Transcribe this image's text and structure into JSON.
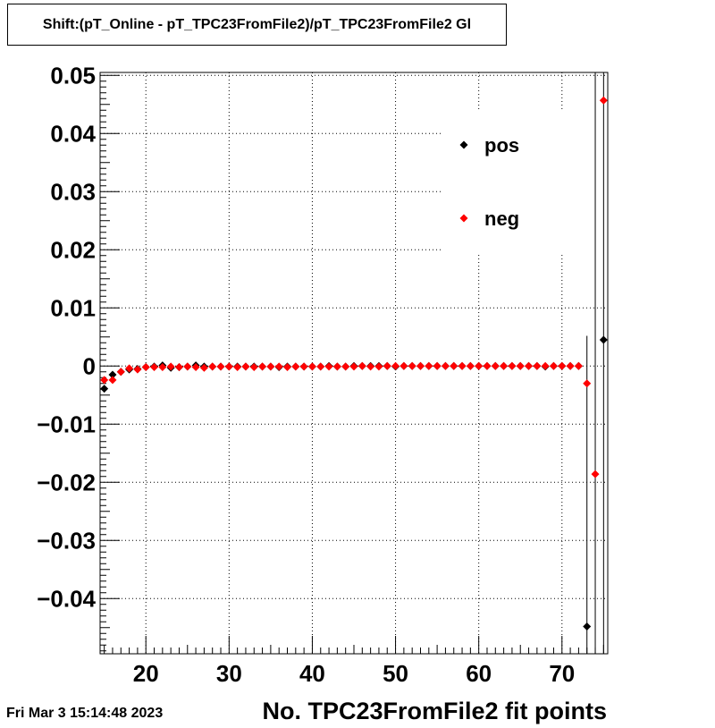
{
  "title": "Shift:(pT_Online - pT_TPC23FromFile2)/pT_TPC23FromFile2 Gl",
  "datestamp": "Fri Mar  3 15:14:48 2023",
  "chart_data": {
    "type": "scatter",
    "title": "Shift:(pT_Online - pT_TPC23FromFile2)/pT_TPC23FromFile2 Gl",
    "xlabel": "No. TPC23FromFile2 fit points",
    "ylabel": "",
    "xlim": [
      14.5,
      75.5
    ],
    "ylim": [
      -0.0495,
      0.0505
    ],
    "x_ticks": [
      20,
      30,
      40,
      50,
      60,
      70
    ],
    "x_tick_labels": [
      "20",
      "30",
      "40",
      "50",
      "60",
      "70"
    ],
    "y_ticks": [
      -0.04,
      -0.03,
      -0.02,
      -0.01,
      0,
      0.01,
      0.02,
      0.03,
      0.04,
      0.05
    ],
    "y_tick_labels": [
      "−0.04",
      "−0.03",
      "−0.02",
      "−0.01",
      "0",
      "0.01",
      "0.02",
      "0.03",
      "0.04",
      "0.05"
    ],
    "grid": true,
    "legend_position": "top-right",
    "series": [
      {
        "name": "pos",
        "color": "#000000",
        "marker": "diamond",
        "points": [
          {
            "x": 15,
            "y": -0.0039
          },
          {
            "x": 16,
            "y": -0.0015
          },
          {
            "x": 17,
            "y": -0.001
          },
          {
            "x": 18,
            "y": -0.0006
          },
          {
            "x": 19,
            "y": -0.0005
          },
          {
            "x": 20,
            "y": -0.0002
          },
          {
            "x": 21,
            "y": -0.0001
          },
          {
            "x": 22,
            "y": 0.0001
          },
          {
            "x": 23,
            "y": -0.0003
          },
          {
            "x": 24,
            "y": -0.0002
          },
          {
            "x": 25,
            "y": -0.0001
          },
          {
            "x": 26,
            "y": 0.0001
          },
          {
            "x": 27,
            "y": -0.0001
          },
          {
            "x": 28,
            "y": -0.0001
          },
          {
            "x": 29,
            "y": -0.0001
          },
          {
            "x": 30,
            "y": -0.0001
          },
          {
            "x": 31,
            "y": -0.0001
          },
          {
            "x": 32,
            "y": -0.0001
          },
          {
            "x": 33,
            "y": -0.0001
          },
          {
            "x": 34,
            "y": -0.0001
          },
          {
            "x": 35,
            "y": -0.0001
          },
          {
            "x": 36,
            "y": -0.0002
          },
          {
            "x": 37,
            "y": -0.0001
          },
          {
            "x": 38,
            "y": -0.0001
          },
          {
            "x": 39,
            "y": -0.0001
          },
          {
            "x": 40,
            "y": -0.0001
          },
          {
            "x": 41,
            "y": -0.0001
          },
          {
            "x": 42,
            "y": 0.0
          },
          {
            "x": 43,
            "y": -0.0001
          },
          {
            "x": 44,
            "y": -0.0001
          },
          {
            "x": 45,
            "y": 0.0
          },
          {
            "x": 46,
            "y": 0.0
          },
          {
            "x": 47,
            "y": 0.0
          },
          {
            "x": 48,
            "y": 0.0
          },
          {
            "x": 49,
            "y": 0.0
          },
          {
            "x": 50,
            "y": -0.0001
          },
          {
            "x": 51,
            "y": 0.0
          },
          {
            "x": 52,
            "y": 0.0
          },
          {
            "x": 53,
            "y": 0.0
          },
          {
            "x": 54,
            "y": 0.0
          },
          {
            "x": 55,
            "y": 0.0
          },
          {
            "x": 56,
            "y": 0.0
          },
          {
            "x": 57,
            "y": 0.0
          },
          {
            "x": 58,
            "y": 0.0
          },
          {
            "x": 59,
            "y": 0.0
          },
          {
            "x": 60,
            "y": 0.0
          },
          {
            "x": 61,
            "y": 0.0
          },
          {
            "x": 62,
            "y": 0.0
          },
          {
            "x": 63,
            "y": 0.0
          },
          {
            "x": 64,
            "y": 0.0
          },
          {
            "x": 65,
            "y": 0.0
          },
          {
            "x": 66,
            "y": 0.0
          },
          {
            "x": 67,
            "y": 0.0
          },
          {
            "x": 68,
            "y": -0.0001
          },
          {
            "x": 69,
            "y": 0.0
          },
          {
            "x": 70,
            "y": 0.0
          },
          {
            "x": 71,
            "y": 0.0
          },
          {
            "x": 72,
            "y": 0.0
          },
          {
            "x": 73,
            "y": -0.0448,
            "err": 0.05
          },
          {
            "x": 74,
            "y": null
          },
          {
            "x": 75,
            "y": 0.0045,
            "err": 0.06
          }
        ]
      },
      {
        "name": "neg",
        "color": "#ff0000",
        "marker": "diamond",
        "points": [
          {
            "x": 15,
            "y": -0.0024
          },
          {
            "x": 16,
            "y": -0.0024
          },
          {
            "x": 17,
            "y": -0.001
          },
          {
            "x": 18,
            "y": -0.0004
          },
          {
            "x": 19,
            "y": -0.0006
          },
          {
            "x": 20,
            "y": -0.0002
          },
          {
            "x": 21,
            "y": -0.0002
          },
          {
            "x": 22,
            "y": -0.0002
          },
          {
            "x": 23,
            "y": -0.0001
          },
          {
            "x": 24,
            "y": -0.0002
          },
          {
            "x": 25,
            "y": -0.0001
          },
          {
            "x": 26,
            "y": -0.0002
          },
          {
            "x": 27,
            "y": -0.0003
          },
          {
            "x": 28,
            "y": -0.0001
          },
          {
            "x": 29,
            "y": -0.0001
          },
          {
            "x": 30,
            "y": -0.0001
          },
          {
            "x": 31,
            "y": -0.0002
          },
          {
            "x": 32,
            "y": -0.0001
          },
          {
            "x": 33,
            "y": -0.0002
          },
          {
            "x": 34,
            "y": -0.0001
          },
          {
            "x": 35,
            "y": -0.0001
          },
          {
            "x": 36,
            "y": -0.0001
          },
          {
            "x": 37,
            "y": -0.0002
          },
          {
            "x": 38,
            "y": -0.0001
          },
          {
            "x": 39,
            "y": -0.0001
          },
          {
            "x": 40,
            "y": -0.0001
          },
          {
            "x": 41,
            "y": -0.0001
          },
          {
            "x": 42,
            "y": -0.0001
          },
          {
            "x": 43,
            "y": -0.0001
          },
          {
            "x": 44,
            "y": -0.0001
          },
          {
            "x": 45,
            "y": -0.0001
          },
          {
            "x": 46,
            "y": 0.0
          },
          {
            "x": 47,
            "y": -0.0001
          },
          {
            "x": 48,
            "y": -0.0001
          },
          {
            "x": 49,
            "y": 0.0
          },
          {
            "x": 50,
            "y": 0.0
          },
          {
            "x": 51,
            "y": 0.0
          },
          {
            "x": 52,
            "y": 0.0
          },
          {
            "x": 53,
            "y": 0.0
          },
          {
            "x": 54,
            "y": 0.0
          },
          {
            "x": 55,
            "y": 0.0
          },
          {
            "x": 56,
            "y": 0.0
          },
          {
            "x": 57,
            "y": 0.0
          },
          {
            "x": 58,
            "y": 0.0
          },
          {
            "x": 59,
            "y": 0.0
          },
          {
            "x": 60,
            "y": 0.0
          },
          {
            "x": 61,
            "y": 0.0
          },
          {
            "x": 62,
            "y": 0.0
          },
          {
            "x": 63,
            "y": 0.0
          },
          {
            "x": 64,
            "y": 0.0
          },
          {
            "x": 65,
            "y": 0.0
          },
          {
            "x": 66,
            "y": 0.0
          },
          {
            "x": 67,
            "y": 0.0
          },
          {
            "x": 68,
            "y": 0.0
          },
          {
            "x": 69,
            "y": 0.0
          },
          {
            "x": 70,
            "y": 0.0
          },
          {
            "x": 71,
            "y": 0.0
          },
          {
            "x": 72,
            "y": 0.0
          },
          {
            "x": 73,
            "y": -0.003
          },
          {
            "x": 74,
            "y": -0.0186
          },
          {
            "x": 75,
            "y": 0.0457
          }
        ]
      }
    ]
  }
}
